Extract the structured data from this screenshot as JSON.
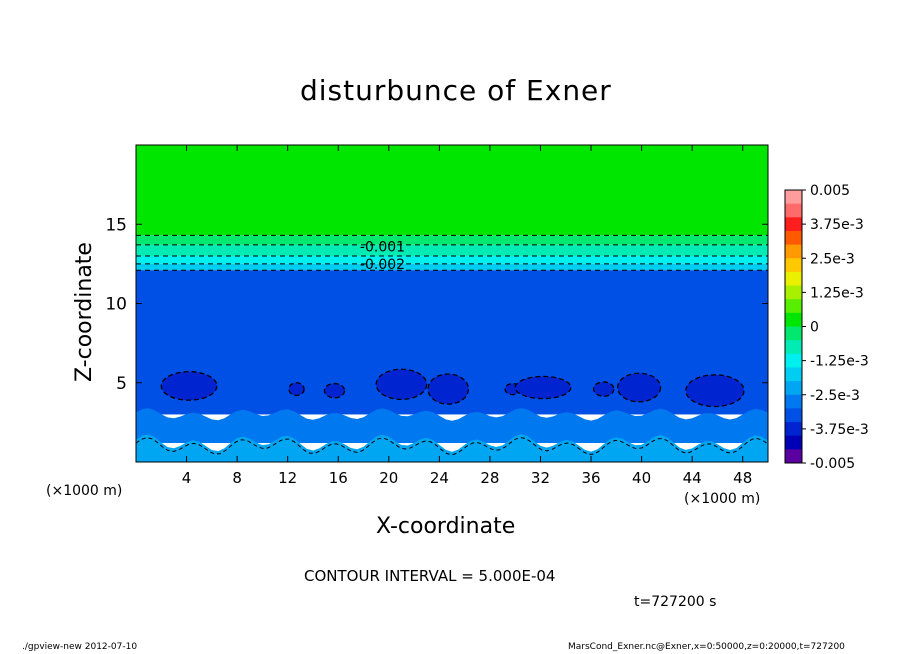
{
  "chart_data": {
    "type": "heatmap",
    "title": "disturbunce of Exner",
    "xlabel": "X-coordinate",
    "ylabel": "Z-coordinate",
    "x_unit": "(×1000 m)",
    "x_ticks": [
      4,
      8,
      12,
      16,
      20,
      24,
      28,
      32,
      36,
      40,
      44,
      48
    ],
    "y_ticks": [
      5,
      10,
      15
    ],
    "xlim": [
      0,
      50
    ],
    "ylim": [
      0,
      20
    ],
    "contour_interval_text": "CONTOUR INTERVAL = 5.000E-04",
    "contour_labels": [
      {
        "text": "-0.001",
        "x": 19.5,
        "z": 13.6
      },
      {
        "text": "-0.002",
        "x": 19.5,
        "z": 12.5
      }
    ],
    "colorbar": {
      "labels": [
        "0.005",
        "3.75e-3",
        "2.5e-3",
        "1.25e-3",
        "0",
        "-1.25e-3",
        "-2.5e-3",
        "-3.75e-3",
        "-0.005"
      ],
      "levels": [
        {
          "min": 0.0045,
          "max": 0.005,
          "color": "#ff9c9c"
        },
        {
          "min": 0.004,
          "max": 0.0045,
          "color": "#ff6a6a"
        },
        {
          "min": 0.0035,
          "max": 0.004,
          "color": "#ff1e1e"
        },
        {
          "min": 0.003,
          "max": 0.0035,
          "color": "#ff5a00"
        },
        {
          "min": 0.0025,
          "max": 0.003,
          "color": "#ff9a00"
        },
        {
          "min": 0.002,
          "max": 0.0025,
          "color": "#ffc800"
        },
        {
          "min": 0.0015,
          "max": 0.002,
          "color": "#eaf000"
        },
        {
          "min": 0.001,
          "max": 0.0015,
          "color": "#a8f000"
        },
        {
          "min": 0.0005,
          "max": 0.001,
          "color": "#58ee00"
        },
        {
          "min": 0.0,
          "max": 0.0005,
          "color": "#00e600"
        },
        {
          "min": -0.0005,
          "max": 0.0,
          "color": "#00e86e"
        },
        {
          "min": -0.001,
          "max": -0.0005,
          "color": "#00ecb4"
        },
        {
          "min": -0.0015,
          "max": -0.001,
          "color": "#00f0f0"
        },
        {
          "min": -0.002,
          "max": -0.0015,
          "color": "#00cdf2"
        },
        {
          "min": -0.0025,
          "max": -0.002,
          "color": "#00a6f2"
        },
        {
          "min": -0.003,
          "max": -0.0025,
          "color": "#0078f0"
        },
        {
          "min": -0.0035,
          "max": -0.003,
          "color": "#0050e6"
        },
        {
          "min": -0.004,
          "max": -0.0035,
          "color": "#0024d0"
        },
        {
          "min": -0.0045,
          "max": -0.004,
          "color": "#0000b4"
        },
        {
          "min": -0.005,
          "max": -0.0045,
          "color": "#5a00a0"
        }
      ]
    },
    "bands": [
      {
        "z_min": 14.3,
        "z_max": 20.0,
        "value": 0.00025,
        "color": "#00e600"
      },
      {
        "z_min": 13.7,
        "z_max": 14.3,
        "value": -0.00025,
        "color": "#00e86e"
      },
      {
        "z_min": 13.0,
        "z_max": 13.7,
        "value": -0.00075,
        "color": "#00ecb4"
      },
      {
        "z_min": 12.5,
        "z_max": 13.0,
        "value": -0.00125,
        "color": "#00f0f0"
      },
      {
        "z_min": 12.1,
        "z_max": 12.5,
        "value": -0.00175,
        "color": "#00cdf2"
      },
      {
        "z_min": 3.0,
        "z_max": 12.1,
        "value": -0.00325,
        "color": "#0050e6"
      },
      {
        "z_min": 1.2,
        "z_max": 3.0,
        "value": -0.00275,
        "color": "#0078f0"
      },
      {
        "z_min": 0.0,
        "z_max": 1.2,
        "value": -0.00225,
        "color": "#00a6f2"
      }
    ],
    "dashed_contour_levels_z": [
      14.3,
      13.7,
      13.0,
      12.5,
      12.1
    ],
    "cells": [
      {
        "x": 4.2,
        "z": 4.8,
        "rx": 2.2,
        "rz": 0.9,
        "value": -0.00375
      },
      {
        "x": 12.7,
        "z": 4.6,
        "rx": 0.6,
        "rz": 0.4,
        "value": -0.00375
      },
      {
        "x": 15.7,
        "z": 4.5,
        "rx": 0.8,
        "rz": 0.45,
        "value": -0.00375
      },
      {
        "x": 21.0,
        "z": 4.9,
        "rx": 2.0,
        "rz": 0.95,
        "value": -0.00375
      },
      {
        "x": 24.7,
        "z": 4.6,
        "rx": 1.6,
        "rz": 0.95,
        "value": -0.00375
      },
      {
        "x": 29.8,
        "z": 4.6,
        "rx": 0.6,
        "rz": 0.35,
        "value": -0.00375
      },
      {
        "x": 32.2,
        "z": 4.7,
        "rx": 2.2,
        "rz": 0.7,
        "value": -0.00375
      },
      {
        "x": 37.0,
        "z": 4.6,
        "rx": 0.8,
        "rz": 0.45,
        "value": -0.00375
      },
      {
        "x": 39.8,
        "z": 4.7,
        "rx": 1.7,
        "rz": 0.9,
        "value": -0.00375
      },
      {
        "x": 45.8,
        "z": 4.5,
        "rx": 2.3,
        "rz": 1.0,
        "value": -0.00375
      }
    ]
  },
  "time_label": "t=727200 s",
  "footer_left": "./gpview-new   2012-07-10",
  "footer_right": "MarsCond_Exner.nc@Exner,x=0:50000,z=0:20000,t=727200"
}
